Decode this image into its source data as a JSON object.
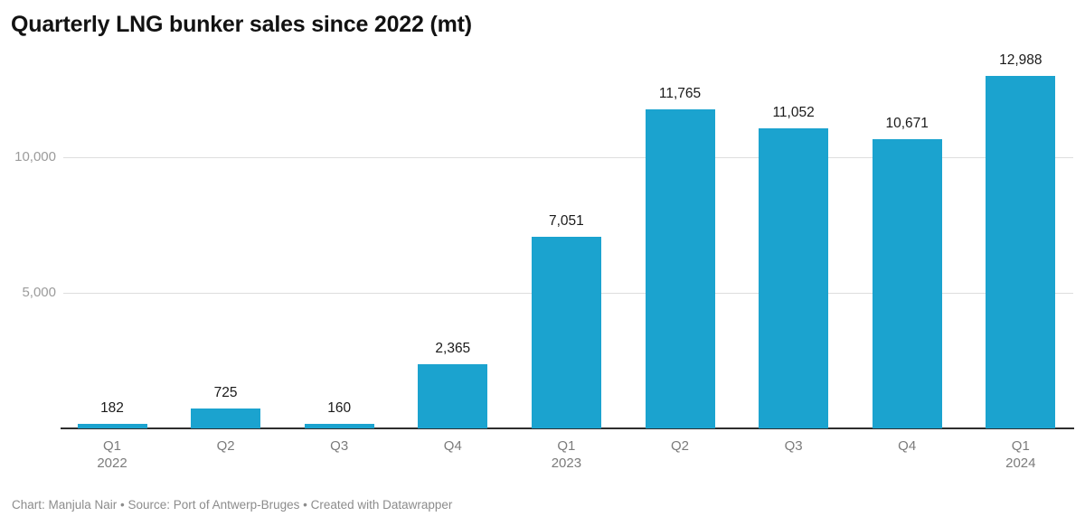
{
  "title": "Quarterly LNG bunker sales since 2022 (mt)",
  "footer": "Chart: Manjula Nair • Source: Port of Antwerp-Bruges • Created with Datawrapper",
  "chart_data": {
    "type": "bar",
    "title": "Quarterly LNG bunker sales since 2022 (mt)",
    "unit": "mt",
    "categories": [
      "Q1",
      "Q2",
      "Q3",
      "Q4",
      "Q1",
      "Q2",
      "Q3",
      "Q4",
      "Q1"
    ],
    "year_labels": [
      "2022",
      "",
      "",
      "",
      "2023",
      "",
      "",
      "",
      "2024"
    ],
    "values": [
      182,
      725,
      160,
      2365,
      7051,
      11765,
      11052,
      10671,
      12988
    ],
    "value_labels": [
      "182",
      "725",
      "160",
      "2,365",
      "7,051",
      "11,765",
      "11,052",
      "10,671",
      "12,988"
    ],
    "yticks": [
      {
        "value": 5000,
        "label": "5,000"
      },
      {
        "value": 10000,
        "label": "10,000"
      }
    ],
    "ylim": [
      0,
      13500
    ],
    "grid": "horizontal-only",
    "legend": "none",
    "bar_color": "#1ba3cf",
    "gridline_color": "#dedede",
    "axis_line_color": "#2e2e2e",
    "value_label_color": "#1a1a1a",
    "tick_label_color": "#7b7b7b",
    "y_label_color": "#9b9b9b"
  }
}
